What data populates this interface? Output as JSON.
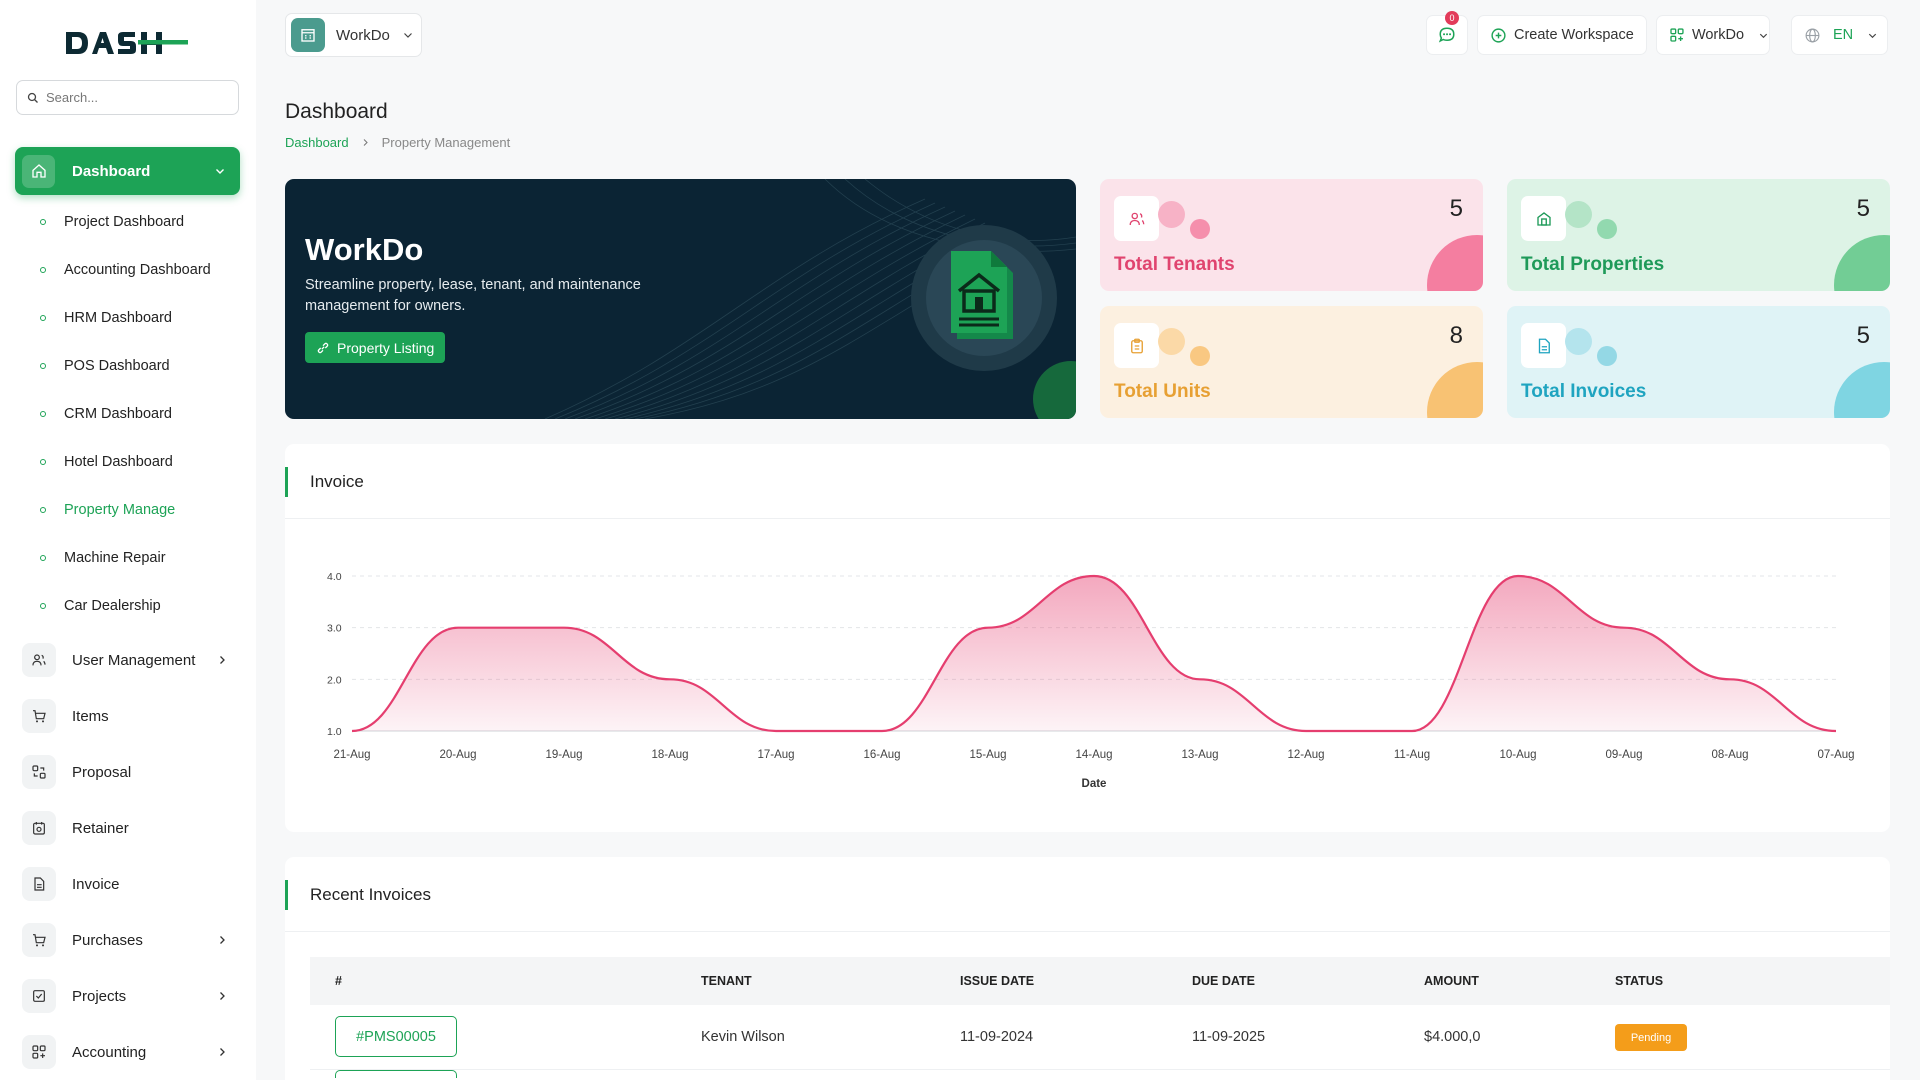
{
  "brand": {
    "logo_text": "DASH",
    "accent": "#1da356"
  },
  "search": {
    "placeholder": "Search..."
  },
  "sidebar": {
    "active": {
      "label": "Dashboard"
    },
    "sub_items": [
      {
        "label": "Project Dashboard"
      },
      {
        "label": "Accounting Dashboard"
      },
      {
        "label": "HRM Dashboard"
      },
      {
        "label": "POS Dashboard"
      },
      {
        "label": "CRM Dashboard"
      },
      {
        "label": "Hotel Dashboard"
      },
      {
        "label": "Property Manage"
      },
      {
        "label": "Machine Repair"
      },
      {
        "label": "Car Dealership"
      }
    ],
    "items": [
      {
        "label": "User Management",
        "icon": "users-icon"
      },
      {
        "label": "Items",
        "icon": "cart-icon"
      },
      {
        "label": "Proposal",
        "icon": "proposal-icon"
      },
      {
        "label": "Retainer",
        "icon": "retainer-icon"
      },
      {
        "label": "Invoice",
        "icon": "file-icon"
      },
      {
        "label": "Purchases",
        "icon": "cart-icon"
      },
      {
        "label": "Projects",
        "icon": "checkbox-icon"
      },
      {
        "label": "Accounting",
        "icon": "grid-icon"
      }
    ]
  },
  "header": {
    "workspace": "WorkDo",
    "notification_count": "0",
    "create_workspace": "Create Workspace",
    "workspace_menu": "WorkDo",
    "language": "EN"
  },
  "page": {
    "title": "Dashboard",
    "breadcrumb": [
      "Dashboard",
      "Property Management"
    ]
  },
  "hero": {
    "title": "WorkDo",
    "subtitle": "Streamline property, lease, tenant, and maintenance management for owners.",
    "button": "Property Listing"
  },
  "stats": [
    {
      "label": "Total Tenants",
      "value": "5",
      "color": "#e0446f",
      "bg": "#fbe3ea",
      "b1": "#f7b2c6",
      "b2": "#f58fac",
      "corner": "#f47ea0"
    },
    {
      "label": "Total Properties",
      "value": "5",
      "color": "#1e9a59",
      "bg": "#ddf3e6",
      "b1": "#b4e4c7",
      "b2": "#92d9af",
      "corner": "#72cd95"
    },
    {
      "label": "Total Units",
      "value": "8",
      "color": "#e7a033",
      "bg": "#fcf0e0",
      "b1": "#fbd9a7",
      "b2": "#f9c882",
      "corner": "#f8c273"
    },
    {
      "label": "Total Invoices",
      "value": "5",
      "color": "#1fa4c0",
      "bg": "#dff3f6",
      "b1": "#b4e4ed",
      "b2": "#94d8e5",
      "corner": "#7fd5e2"
    }
  ],
  "invoice_card": {
    "title": "Invoice"
  },
  "chart_data": {
    "type": "area",
    "title": "",
    "xlabel": "Date",
    "ylabel": "",
    "x": [
      "21-Aug",
      "20-Aug",
      "19-Aug",
      "18-Aug",
      "17-Aug",
      "16-Aug",
      "15-Aug",
      "14-Aug",
      "13-Aug",
      "12-Aug",
      "11-Aug",
      "10-Aug",
      "09-Aug",
      "08-Aug",
      "07-Aug"
    ],
    "series": [
      {
        "values": [
          1,
          3,
          3,
          2,
          1,
          1,
          3,
          4,
          2,
          1,
          1,
          4,
          3,
          2,
          1
        ]
      }
    ],
    "ylim": [
      1,
      4
    ],
    "yticks": [
      "1.0",
      "2.0",
      "3.0",
      "4.0"
    ],
    "grid": true,
    "color": "#e53e6f"
  },
  "recent": {
    "title": "Recent Invoices",
    "columns": [
      "#",
      "TENANT",
      "ISSUE DATE",
      "DUE DATE",
      "AMOUNT",
      "STATUS"
    ],
    "rows": [
      {
        "id": "#PMS00005",
        "tenant": "Kevin Wilson",
        "issue": "11-09-2024",
        "due": "11-09-2025",
        "amount": "$4.000,0",
        "status": "Pending"
      }
    ]
  }
}
